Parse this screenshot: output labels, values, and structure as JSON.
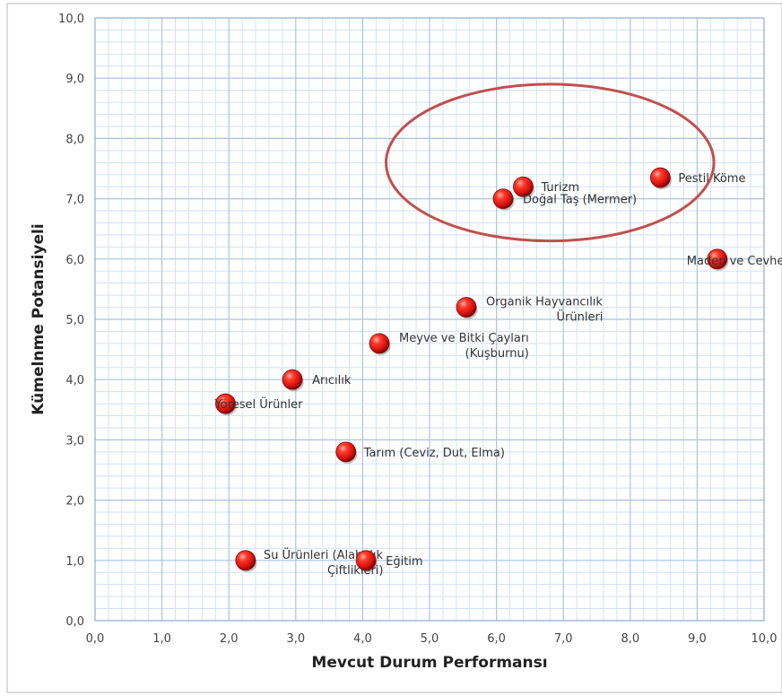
{
  "chart_data": {
    "type": "scatter",
    "xlabel": "Mevcut Durum Performansı",
    "ylabel": "Kümelnme Potansiyeli",
    "xlim": [
      0,
      10
    ],
    "ylim": [
      0,
      10
    ],
    "x_ticks": [
      "0,0",
      "1,0",
      "2,0",
      "3,0",
      "4,0",
      "5,0",
      "6,0",
      "7,0",
      "8,0",
      "9,0",
      "10,0"
    ],
    "y_ticks": [
      "0,0",
      "1,0",
      "2,0",
      "3,0",
      "4,0",
      "5,0",
      "6,0",
      "7,0",
      "8,0",
      "9,0",
      "10,0"
    ],
    "grid": true,
    "minor_grid_divisions": 5,
    "marker_color": "#e02020",
    "grid_major_color": "#a9c4e4",
    "grid_minor_color": "#d3e2f3",
    "highlight_color": "#c0504d",
    "highlight_ellipse": {
      "cx": 6.8,
      "cy": 7.6,
      "rx": 2.45,
      "ry": 1.3
    },
    "points": [
      {
        "label": [
          "Turizm"
        ],
        "x": 6.4,
        "y": 7.2
      },
      {
        "label": [
          "Doğal Taş (Mermer)"
        ],
        "x": 6.1,
        "y": 7.0
      },
      {
        "label": [
          "Pestil Köme"
        ],
        "x": 8.45,
        "y": 7.35
      },
      {
        "label": [
          "Maden ve Cevher"
        ],
        "x": 9.3,
        "y": 6.0
      },
      {
        "label": [
          "Organik Hayvancılık",
          "Ürünleri"
        ],
        "x": 5.55,
        "y": 5.2
      },
      {
        "label": [
          "Meyve ve Bitki Çayları",
          "(Kuşburnu)"
        ],
        "x": 4.25,
        "y": 4.6
      },
      {
        "label": [
          "Arıcılık"
        ],
        "x": 2.95,
        "y": 4.0
      },
      {
        "label": [
          "Yöresel Ürünler"
        ],
        "x": 1.95,
        "y": 3.6
      },
      {
        "label": [
          "Tarım (Ceviz, Dut, Elma)"
        ],
        "x": 3.75,
        "y": 2.8
      },
      {
        "label": [
          "Su Ürünleri (Alabalık",
          "Çiftlikleri)"
        ],
        "x": 2.25,
        "y": 1.0
      },
      {
        "label": [
          "Eğitim"
        ],
        "x": 4.05,
        "y": 1.0
      }
    ]
  }
}
